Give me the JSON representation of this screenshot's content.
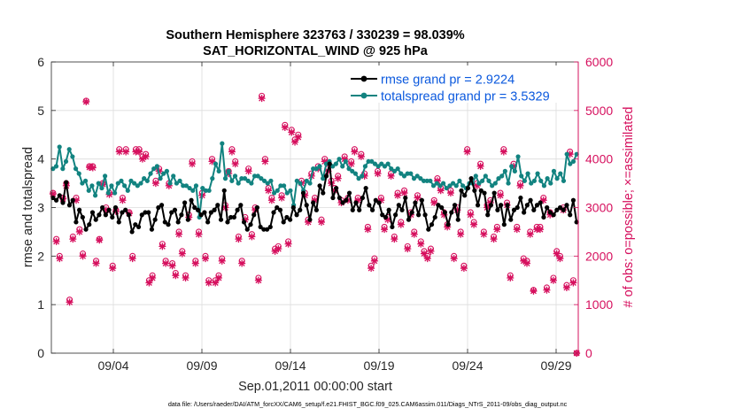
{
  "chart_data": {
    "type": "line",
    "title_line1": "Southern Hemisphere 323763 / 330239 = 98.039%",
    "title_line2": "SAT_HORIZONTAL_WIND @ 925 hPa",
    "xlabel": "Sep.01,2011 00:00:00 start",
    "ylabel_left": "rmse and totalspread",
    "ylabel_right": "# of obs: o=possible; ×=assimilated",
    "footnote": "data file: /Users/raeder/DAI/ATM_forcXX/CAM6_setup/f.e21.FHIST_BGC.f09_025.CAM6assim.011/Diags_NTrS_2011-09/obs_diag_output.nc",
    "xlim": [
      0.5,
      30.25
    ],
    "ylim_left": [
      0,
      6
    ],
    "ylim_right": [
      0,
      6000
    ],
    "x_ticks": [
      {
        "value": 4,
        "label": "09/04"
      },
      {
        "value": 9,
        "label": "09/09"
      },
      {
        "value": 14,
        "label": "09/14"
      },
      {
        "value": 19,
        "label": "09/19"
      },
      {
        "value": 24,
        "label": "09/24"
      },
      {
        "value": 29,
        "label": "09/29"
      }
    ],
    "y_left_ticks": [
      "0",
      "1",
      "2",
      "3",
      "4",
      "5",
      "6"
    ],
    "y_right_ticks": [
      "0",
      "1000",
      "2000",
      "3000",
      "4000",
      "5000",
      "6000"
    ],
    "grid": true,
    "legend_position": "top-right",
    "colors": {
      "rmse": "#000000",
      "spread": "#128380",
      "obs": "#d6105e",
      "legend_text": "#0b59de"
    },
    "series": [
      {
        "name": "rmse grand pr = 2.9224",
        "axis": "left",
        "values": [
          3.2,
          3.15,
          3.25,
          3.1,
          3.52,
          3.05,
          3.15,
          2.7,
          2.95,
          2.8,
          2.55,
          2.65,
          2.9,
          2.75,
          2.85,
          3.0,
          2.85,
          2.95,
          2.8,
          3.0,
          2.7,
          2.9,
          2.95,
          2.85,
          2.5,
          2.65,
          2.6,
          2.85,
          2.9,
          2.9,
          2.55,
          2.75,
          3.0,
          3.05,
          2.7,
          2.65,
          2.9,
          2.95,
          2.7,
          2.85,
          3.1,
          2.75,
          3.15,
          3.0,
          2.95,
          2.85,
          2.9,
          2.7,
          2.9,
          2.95,
          3.05,
          2.75,
          3.35,
          2.7,
          2.8,
          2.8,
          2.95,
          3.05,
          2.7,
          2.55,
          2.65,
          2.85,
          3.0,
          2.6,
          2.55,
          2.55,
          2.6,
          2.9,
          3.0,
          2.95,
          2.7,
          2.8,
          2.75,
          3.0,
          2.85,
          2.95,
          3.3,
          3.05,
          2.75,
          3.1,
          2.95,
          3.45,
          3.3,
          3.65,
          3.9,
          3.2,
          3.4,
          3.2,
          3.1,
          3.15,
          3.3,
          2.95,
          3.1,
          2.95,
          3.2,
          3.4,
          3.05,
          2.95,
          3.15,
          3.1,
          2.85,
          2.8,
          2.95,
          2.6,
          2.85,
          3.05,
          2.95,
          3.2,
          2.75,
          2.9,
          3.1,
          2.85,
          3.15,
          2.85,
          2.55,
          2.65,
          2.8,
          3.05,
          3.0,
          2.9,
          2.65,
          2.9,
          3.05,
          2.75,
          3.35,
          3.25,
          3.4,
          3.6,
          3.35,
          3.05,
          3.35,
          3.3,
          2.85,
          3.05,
          3.3,
          2.95,
          3.05,
          2.65,
          3.05,
          2.75,
          2.95,
          3.0,
          3.2,
          2.9,
          3.05,
          3.15,
          2.95,
          3.05,
          3.1,
          2.8,
          3.0,
          2.9,
          2.85,
          2.95,
          3.0,
          2.95,
          3.05,
          2.85,
          3.15,
          2.7
        ]
      },
      {
        "name": "totalspread grand pr = 3.5329",
        "axis": "left",
        "values": [
          3.8,
          3.85,
          4.25,
          3.8,
          3.95,
          4.2,
          4.05,
          3.8,
          3.7,
          3.5,
          3.55,
          3.35,
          3.45,
          3.25,
          3.5,
          3.4,
          3.65,
          3.3,
          3.45,
          3.3,
          3.5,
          3.55,
          3.45,
          3.35,
          3.55,
          3.5,
          3.45,
          3.5,
          3.6,
          3.55,
          3.7,
          3.8,
          3.85,
          3.6,
          3.7,
          3.75,
          3.5,
          3.65,
          3.5,
          3.55,
          3.45,
          3.45,
          3.4,
          3.35,
          3.45,
          2.8,
          3.4,
          3.35,
          3.35,
          3.6,
          3.9,
          3.75,
          4.32,
          3.6,
          3.75,
          3.55,
          3.65,
          3.5,
          3.6,
          3.6,
          3.55,
          3.5,
          3.65,
          3.65,
          3.6,
          3.55,
          3.5,
          3.55,
          3.3,
          3.35,
          3.45,
          3.45,
          3.3,
          3.35,
          3.05,
          3.55,
          3.5,
          3.35,
          3.55,
          3.5,
          3.8,
          3.8,
          3.85,
          3.6,
          3.9,
          3.95,
          3.85,
          3.9,
          4.0,
          3.85,
          3.95,
          3.8,
          3.75,
          3.7,
          3.6,
          3.65,
          3.85,
          3.95,
          3.95,
          3.9,
          3.85,
          3.9,
          3.85,
          3.9,
          3.8,
          3.75,
          3.8,
          3.7,
          3.65,
          3.7,
          3.7,
          3.6,
          3.65,
          3.6,
          3.55,
          3.55,
          3.55,
          3.45,
          3.5,
          3.45,
          3.5,
          3.4,
          3.45,
          3.5,
          3.45,
          3.55,
          3.45,
          3.4,
          3.5,
          3.5,
          3.65,
          3.5,
          3.55,
          3.65,
          3.55,
          3.45,
          3.5,
          3.6,
          3.65,
          3.75,
          3.5,
          3.85,
          3.75,
          4.05,
          3.65,
          3.55,
          3.7,
          3.5,
          3.55,
          3.7,
          3.55,
          3.45,
          3.6,
          3.5,
          3.75,
          3.6,
          3.7,
          3.55,
          4.1,
          3.9,
          3.95,
          4.1
        ]
      }
    ],
    "obs_possible": [
      3300,
      2350,
      2000,
      3200,
      3500,
      1100,
      2400,
      3200,
      2550,
      2050,
      5200,
      3850,
      3850,
      1900,
      2350,
      3500,
      3000,
      3300,
      1800,
      2950,
      4200,
      3200,
      4200,
      2900,
      2000,
      4200,
      4200,
      4050,
      4100,
      1500,
      1600,
      3550,
      3800,
      2250,
      1900,
      3500,
      1850,
      1650,
      2500,
      2100,
      1600,
      2850,
      3950,
      1900,
      2500,
      3300,
      2000,
      1500,
      4000,
      1500,
      1600,
      1950,
      3050,
      3750,
      4200,
      3950,
      2400,
      1900,
      2800,
      3800,
      2450,
      3000,
      1550,
      5300,
      4000,
      3400,
      3200,
      2150,
      2200,
      3250,
      4700,
      2300,
      4600,
      4400,
      4500,
      3550,
      3300,
      2750,
      3700,
      3200,
      3850,
      2750,
      4000,
      3800,
      3550,
      3400,
      3650,
      3150,
      4050,
      3200,
      3950,
      4200,
      3200,
      4100,
      3700,
      2600,
      1800,
      1950,
      3750,
      3200,
      2600,
      2800,
      3700,
      2400,
      3300,
      2700,
      3350,
      2200,
      2900,
      2500,
      3250,
      2300,
      2100,
      2000,
      2150,
      3150,
      3600,
      3400,
      2900,
      2650,
      3350,
      2000,
      3000,
      2500,
      1800,
      4200,
      2900,
      2700,
      3500,
      3900,
      2500,
      3050,
      3150,
      2400,
      2600,
      3300,
      4200,
      3100,
      1600,
      3900,
      2600,
      3500,
      1950,
      1900,
      2500,
      1300,
      2600,
      2600,
      3200,
      1350,
      2900,
      1550,
      2100,
      2000,
      3000,
      1400,
      4150,
      1500,
      0
    ],
    "obs_assimilated": [
      3280,
      2300,
      1950,
      3180,
      3450,
      1050,
      2350,
      3150,
      2500,
      2000,
      5180,
      3830,
      3820,
      1850,
      2330,
      3480,
      2950,
      3270,
      1750,
      2920,
      4150,
      3150,
      4150,
      2880,
      1950,
      4150,
      4150,
      4000,
      4050,
      1450,
      1550,
      3500,
      3750,
      2200,
      1850,
      3450,
      1800,
      1600,
      2450,
      2050,
      1550,
      2800,
      3900,
      1850,
      2450,
      3250,
      1950,
      1450,
      3950,
      1450,
      1550,
      1900,
      3000,
      3700,
      4150,
      3900,
      2350,
      1850,
      2750,
      3750,
      2400,
      2950,
      1500,
      5250,
      3950,
      3350,
      3150,
      2100,
      2150,
      3200,
      4650,
      2250,
      4550,
      4350,
      4450,
      3500,
      3250,
      2700,
      3650,
      3150,
      3800,
      2700,
      3950,
      3750,
      3500,
      3350,
      3600,
      3100,
      4000,
      3150,
      3900,
      4150,
      3150,
      4050,
      3650,
      2550,
      1750,
      1900,
      3700,
      3150,
      2550,
      2750,
      3650,
      2350,
      3250,
      2650,
      3300,
      2150,
      2850,
      2450,
      3200,
      2250,
      2050,
      1950,
      2100,
      3100,
      3550,
      3350,
      2850,
      2600,
      3300,
      1950,
      2950,
      2450,
      1750,
      4150,
      2850,
      2650,
      3450,
      3850,
      2450,
      3000,
      3100,
      2350,
      2550,
      3250,
      4150,
      3050,
      1550,
      3850,
      2550,
      3450,
      1900,
      1850,
      2450,
      1280,
      2550,
      2550,
      3150,
      1300,
      2850,
      1500,
      2050,
      1950,
      2950,
      1350,
      4100,
      1450,
      0
    ]
  }
}
